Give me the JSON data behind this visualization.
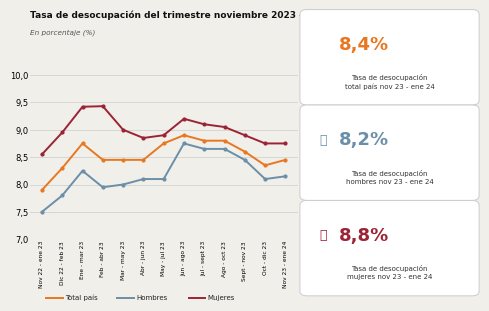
{
  "title": "Tasa de desocupación del trimestre noviembre 2023 - enero 2024",
  "subtitle": "En porcentaje (%)",
  "xlabels": [
    "Nov 22 - ene 23",
    "Dic 22 - feb 23",
    "Ene - mar 23",
    "Feb - abr 23",
    "Mar - may 23",
    "Abr - jun 23",
    "May - jul 23",
    "Jun - ago 23",
    "Jul - sept 23",
    "Ago - oct 23",
    "Sept - nov 23",
    "Oct - dic 23",
    "Nov 23 - ene 24"
  ],
  "total_pais": [
    7.9,
    8.3,
    8.75,
    8.45,
    8.45,
    8.45,
    8.75,
    8.9,
    8.8,
    8.8,
    8.6,
    8.35,
    8.45
  ],
  "hombres": [
    7.5,
    7.8,
    8.25,
    7.95,
    8.0,
    8.1,
    8.1,
    8.75,
    8.65,
    8.65,
    8.45,
    8.1,
    8.15
  ],
  "mujeres": [
    8.55,
    8.95,
    9.42,
    9.43,
    9.0,
    8.85,
    8.9,
    9.2,
    9.1,
    9.05,
    8.9,
    8.75,
    8.75
  ],
  "ylim": [
    7.0,
    10.0
  ],
  "yticks": [
    7.0,
    7.5,
    8.0,
    8.5,
    9.0,
    9.5,
    10.0
  ],
  "color_total": "#E87722",
  "color_hombres": "#6B8FA8",
  "color_mujeres": "#9B2335",
  "bg_color": "#F0EFEA",
  "highlight_total": "8,4%",
  "highlight_hombres": "8,2%",
  "highlight_mujeres": "8,8%",
  "label_total": "Tasa de desocupación\ntotal país nov 23 - ene 24",
  "label_hombres": "Tasa de desocupación\nhombres nov 23 - ene 24",
  "label_mujeres": "Tasa de desocupación\nmujeres nov 23 - ene 24",
  "legend_labels": [
    "Total país",
    "Hombres",
    "Mujeres"
  ]
}
